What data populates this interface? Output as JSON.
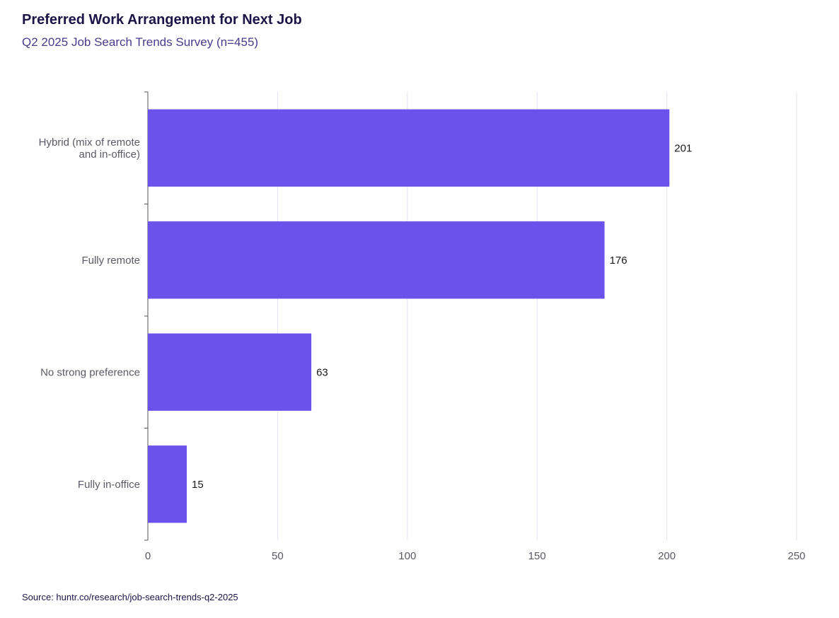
{
  "title": "Preferred Work Arrangement for Next Job",
  "subtitle": "Q2 2025 Job Search Trends Survey (n=455)",
  "source": "Source: huntr.co/research/job-search-trends-q2-2025",
  "colors": {
    "bar": "#6b52eb",
    "grid": "#e4e2f2",
    "axis": "#555555"
  },
  "chart_data": {
    "type": "bar",
    "orientation": "horizontal",
    "title": "Preferred Work Arrangement for Next Job",
    "subtitle": "Q2 2025 Job Search Trends Survey (n=455)",
    "categories": [
      [
        "Hybrid (mix of remote",
        "and in-office)"
      ],
      [
        "Fully remote"
      ],
      [
        "No strong preference"
      ],
      [
        "Fully in-office"
      ]
    ],
    "values": [
      201,
      176,
      63,
      15
    ],
    "xlim": [
      0,
      250
    ],
    "xticks": [
      0,
      50,
      100,
      150,
      200,
      250
    ],
    "xlabel": "",
    "ylabel": "",
    "grid": true,
    "legend": "none"
  }
}
